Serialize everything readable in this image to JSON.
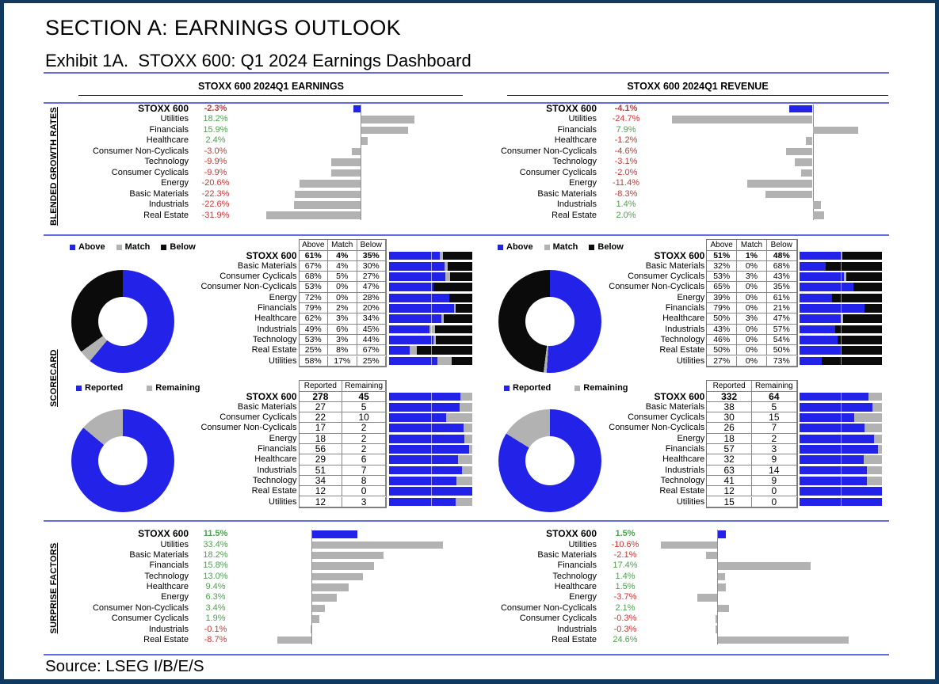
{
  "header": {
    "section_title": "SECTION A: EARNINGS OUTLOOK",
    "exhibit_title": "Exhibit 1A.  STOXX 600: Q1 2024 Earnings Dashboard"
  },
  "footer": {
    "source": "Source: LSEG I/B/E/S"
  },
  "section_labels": {
    "growth": "BLENDED GROWTH RATES",
    "scorecard": "SCORECARD",
    "surprise": "SURPRISE FACTORS"
  },
  "colors": {
    "frame_navy": "#12395e",
    "rule_blue": "#5f6ce2",
    "bar_blue": "#2222e8",
    "bar_gray": "#b2b2b2",
    "bar_black": "#0b0b0b",
    "positive_green": "#4e9e50",
    "negative_red": "#cb3636"
  },
  "chart_data": {
    "earnings": {
      "panel_header": "STOXX 600 2024Q1 EARNINGS",
      "blended_growth": {
        "type": "bar",
        "unit": "%",
        "categories": [
          "STOXX 600",
          "Utilities",
          "Financials",
          "Healthcare",
          "Consumer Non-Cyclicals",
          "Technology",
          "Consumer Cyclicals",
          "Energy",
          "Basic Materials",
          "Industrials",
          "Real Estate"
        ],
        "values": [
          -2.3,
          18.2,
          15.9,
          2.4,
          -3.0,
          -9.9,
          -9.9,
          -20.6,
          -22.3,
          -22.6,
          -31.9
        ],
        "labels": [
          "-2.3%",
          "18.2%",
          "15.9%",
          "2.4%",
          "-3.0%",
          "-9.9%",
          "-9.9%",
          "-20.6%",
          "-22.3%",
          "-22.6%",
          "-31.9%"
        ]
      },
      "scorecard_above_match_below": {
        "type": "table",
        "legend": [
          "Above",
          "Match",
          "Below"
        ],
        "columns": [
          "Above",
          "Match",
          "Below"
        ],
        "categories": [
          "STOXX 600",
          "Basic Materials",
          "Consumer Cyclicals",
          "Consumer Non-Cyclicals",
          "Energy",
          "Financials",
          "Healthcare",
          "Industrials",
          "Technology",
          "Real Estate",
          "Utilities"
        ],
        "series": [
          {
            "name": "Above",
            "values": [
              61,
              67,
              68,
              53,
              72,
              79,
              62,
              49,
              53,
              25,
              58
            ]
          },
          {
            "name": "Match",
            "values": [
              4,
              4,
              5,
              0,
              0,
              2,
              3,
              6,
              3,
              8,
              17
            ]
          },
          {
            "name": "Below",
            "values": [
              35,
              30,
              27,
              47,
              28,
              20,
              34,
              45,
              44,
              67,
              25
            ]
          }
        ],
        "cell_suffix": "%",
        "donut": {
          "type": "donut",
          "slices": [
            61,
            4,
            35
          ]
        }
      },
      "scorecard_reported": {
        "type": "table",
        "legend": [
          "Reported",
          "Remaining"
        ],
        "columns": [
          "Reported",
          "Remaining"
        ],
        "categories": [
          "STOXX 600",
          "Basic Materials",
          "Consumer Cyclicals",
          "Consumer Non-Cyclicals",
          "Energy",
          "Financials",
          "Healthcare",
          "Industrials",
          "Technology",
          "Real Estate",
          "Utilities"
        ],
        "series": [
          {
            "name": "Reported",
            "values": [
              278,
              27,
              22,
              17,
              18,
              56,
              29,
              51,
              34,
              12,
              12
            ]
          },
          {
            "name": "Remaining",
            "values": [
              45,
              5,
              10,
              2,
              2,
              2,
              6,
              7,
              8,
              0,
              3
            ]
          }
        ],
        "cell_suffix": "",
        "donut": {
          "type": "donut",
          "slices": [
            278,
            45
          ]
        }
      },
      "surprise_factors": {
        "type": "bar",
        "unit": "%",
        "categories": [
          "STOXX 600",
          "Utilities",
          "Basic Materials",
          "Financials",
          "Technology",
          "Healthcare",
          "Energy",
          "Consumer Non-Cyclicals",
          "Consumer Cyclicals",
          "Industrials",
          "Real Estate"
        ],
        "values": [
          11.5,
          33.4,
          18.2,
          15.8,
          13.0,
          9.4,
          6.3,
          3.4,
          1.9,
          -0.1,
          -8.7
        ],
        "labels": [
          "11.5%",
          "33.4%",
          "18.2%",
          "15.8%",
          "13.0%",
          "9.4%",
          "6.3%",
          "3.4%",
          "1.9%",
          "-0.1%",
          "-8.7%"
        ]
      }
    },
    "revenue": {
      "panel_header": "STOXX 600 2024Q1 REVENUE",
      "blended_growth": {
        "type": "bar",
        "unit": "%",
        "categories": [
          "STOXX 600",
          "Utilities",
          "Financials",
          "Healthcare",
          "Consumer Non-Cyclicals",
          "Technology",
          "Consumer Cyclicals",
          "Energy",
          "Basic Materials",
          "Industrials",
          "Real Estate"
        ],
        "values": [
          -4.1,
          -24.7,
          7.9,
          -1.2,
          -4.6,
          -3.1,
          -2.0,
          -11.4,
          -8.3,
          1.4,
          2.0
        ],
        "labels": [
          "-4.1%",
          "-24.7%",
          "7.9%",
          "-1.2%",
          "-4.6%",
          "-3.1%",
          "-2.0%",
          "-11.4%",
          "-8.3%",
          "1.4%",
          "2.0%"
        ]
      },
      "scorecard_above_match_below": {
        "type": "table",
        "legend": [
          "Above",
          "Match",
          "Below"
        ],
        "columns": [
          "Above",
          "Match",
          "Below"
        ],
        "categories": [
          "STOXX 600",
          "Basic Materials",
          "Consumer Cyclicals",
          "Consumer Non-Cyclicals",
          "Energy",
          "Financials",
          "Healthcare",
          "Industrials",
          "Technology",
          "Real Estate",
          "Utilities"
        ],
        "series": [
          {
            "name": "Above",
            "values": [
              51,
              32,
              53,
              65,
              39,
              79,
              50,
              43,
              46,
              50,
              27
            ]
          },
          {
            "name": "Match",
            "values": [
              1,
              0,
              3,
              0,
              0,
              0,
              3,
              0,
              0,
              0,
              0
            ]
          },
          {
            "name": "Below",
            "values": [
              48,
              68,
              43,
              35,
              61,
              21,
              47,
              57,
              54,
              50,
              73
            ]
          }
        ],
        "cell_suffix": "%",
        "donut": {
          "type": "donut",
          "slices": [
            51,
            1,
            48
          ]
        }
      },
      "scorecard_reported": {
        "type": "table",
        "legend": [
          "Reported",
          "Remaining"
        ],
        "columns": [
          "Reported",
          "Remaining"
        ],
        "categories": [
          "STOXX 600",
          "Basic Materials",
          "Consumer Cyclicals",
          "Consumer Non-Cyclicals",
          "Energy",
          "Financials",
          "Healthcare",
          "Industrials",
          "Technology",
          "Real Estate",
          "Utilities"
        ],
        "series": [
          {
            "name": "Reported",
            "values": [
              332,
              38,
              30,
              26,
              18,
              57,
              32,
              63,
              41,
              12,
              15
            ]
          },
          {
            "name": "Remaining",
            "values": [
              64,
              5,
              15,
              7,
              2,
              3,
              9,
              14,
              9,
              0,
              0
            ]
          }
        ],
        "cell_suffix": "",
        "donut": {
          "type": "donut",
          "slices": [
            332,
            64
          ]
        }
      },
      "surprise_factors": {
        "type": "bar",
        "unit": "%",
        "categories": [
          "STOXX 600",
          "Utilities",
          "Basic Materials",
          "Financials",
          "Technology",
          "Healthcare",
          "Energy",
          "Consumer Non-Cyclicals",
          "Consumer Cyclicals",
          "Industrials",
          "Real Estate"
        ],
        "values": [
          1.5,
          -10.6,
          -2.1,
          17.4,
          1.4,
          1.5,
          -3.7,
          2.1,
          -0.3,
          -0.3,
          24.6
        ],
        "labels": [
          "1.5%",
          "-10.6%",
          "-2.1%",
          "17.4%",
          "1.4%",
          "1.5%",
          "-3.7%",
          "2.1%",
          "-0.3%",
          "-0.3%",
          "24.6%"
        ]
      }
    }
  }
}
